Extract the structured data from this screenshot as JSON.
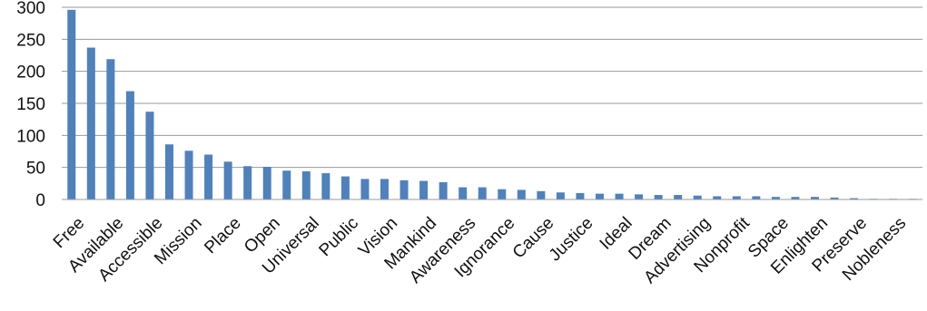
{
  "chart_data": {
    "type": "bar",
    "title": "",
    "xlabel": "",
    "ylabel": "",
    "ylim": [
      0,
      300
    ],
    "yticks": [
      0,
      50,
      100,
      150,
      200,
      250,
      300
    ],
    "grid": true,
    "legend": "none",
    "bar_color": "#4f81bd",
    "categories": [
      "Free",
      "",
      "Available",
      "",
      "Accessible",
      "",
      "Mission",
      "",
      "Place",
      "",
      "Open",
      "",
      "Universal",
      "",
      "Public",
      "",
      "Vision",
      "",
      "Mankind",
      "",
      "Awareness",
      "",
      "Ignorance",
      "",
      "Cause",
      "",
      "Justice",
      "",
      "Ideal",
      "",
      "Dream",
      "",
      "Advertising",
      "",
      "Nonprofit",
      "",
      "Space",
      "",
      "Enlighten",
      "",
      "Preserve",
      "",
      "Nobleness",
      ""
    ],
    "values": [
      296,
      237,
      219,
      169,
      137,
      86,
      76,
      70,
      59,
      52,
      51,
      45,
      44,
      41,
      36,
      32,
      32,
      30,
      29,
      27,
      19,
      19,
      16,
      15,
      13,
      11,
      10,
      9,
      9,
      8,
      7,
      7,
      6,
      5,
      5,
      5,
      4,
      4,
      4,
      3,
      2,
      1,
      1,
      1
    ]
  }
}
